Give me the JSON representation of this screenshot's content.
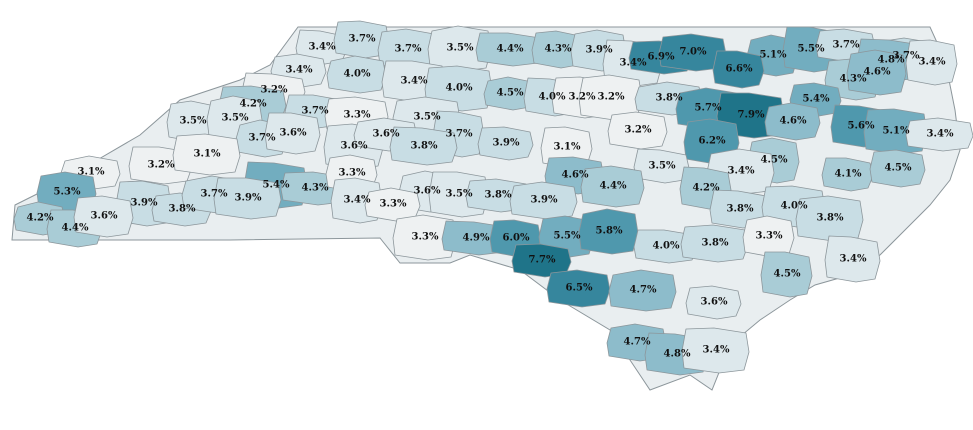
{
  "map": {
    "region": "North Carolina",
    "color_scale": [
      {
        "max": 3.3,
        "color": "#eef1f2"
      },
      {
        "max": 3.6,
        "color": "#dde8ec"
      },
      {
        "max": 4.0,
        "color": "#c8dde4"
      },
      {
        "max": 4.5,
        "color": "#a9ccd6"
      },
      {
        "max": 5.0,
        "color": "#8dbccb"
      },
      {
        "max": 5.5,
        "color": "#72adbf"
      },
      {
        "max": 6.2,
        "color": "#4f98ad"
      },
      {
        "max": 7.0,
        "color": "#36869d"
      },
      {
        "max": 9.9,
        "color": "#1f7489"
      }
    ]
  },
  "counties": [
    {
      "label": "3.4%",
      "value": 3.4
    },
    {
      "label": "3.7%",
      "value": 3.7
    },
    {
      "label": "3.7%",
      "value": 3.7
    },
    {
      "label": "3.5%",
      "value": 3.5
    },
    {
      "label": "4.4%",
      "value": 4.4
    },
    {
      "label": "4.3%",
      "value": 4.3
    },
    {
      "label": "3.9%",
      "value": 3.9
    },
    {
      "label": "3.4%",
      "value": 3.4
    },
    {
      "label": "6.9%",
      "value": 6.9
    },
    {
      "label": "7.0%",
      "value": 7.0
    },
    {
      "label": "5.1%",
      "value": 5.1
    },
    {
      "label": "5.5%",
      "value": 5.5
    },
    {
      "label": "3.7%",
      "value": 3.7
    },
    {
      "label": "3.7%",
      "value": 3.7
    },
    {
      "label": "4.8%",
      "value": 4.8
    },
    {
      "label": "3.4%",
      "value": 3.4
    },
    {
      "label": "3.4%",
      "value": 3.4
    },
    {
      "label": "4.0%",
      "value": 4.0
    },
    {
      "label": "3.4%",
      "value": 3.4
    },
    {
      "label": "4.0%",
      "value": 4.0
    },
    {
      "label": "4.5%",
      "value": 4.5
    },
    {
      "label": "4.0%",
      "value": 4.0
    },
    {
      "label": "3.2%",
      "value": 3.2
    },
    {
      "label": "3.2%",
      "value": 3.2
    },
    {
      "label": "3.8%",
      "value": 3.8
    },
    {
      "label": "6.6%",
      "value": 6.6
    },
    {
      "label": "4.3%",
      "value": 4.3
    },
    {
      "label": "4.6%",
      "value": 4.6
    },
    {
      "label": "3.2%",
      "value": 3.2
    },
    {
      "label": "4.2%",
      "value": 4.2
    },
    {
      "label": "3.5%",
      "value": 3.5
    },
    {
      "label": "3.5%",
      "value": 3.5
    },
    {
      "label": "3.7%",
      "value": 3.7
    },
    {
      "label": "3.3%",
      "value": 3.3
    },
    {
      "label": "3.5%",
      "value": 3.5
    },
    {
      "label": "3.7%",
      "value": 3.7
    },
    {
      "label": "3.9%",
      "value": 3.9
    },
    {
      "label": "3.2%",
      "value": 3.2
    },
    {
      "label": "5.7%",
      "value": 5.7
    },
    {
      "label": "7.9%",
      "value": 7.9
    },
    {
      "label": "5.4%",
      "value": 5.4
    },
    {
      "label": "4.6%",
      "value": 4.6
    },
    {
      "label": "5.6%",
      "value": 5.6
    },
    {
      "label": "5.1%",
      "value": 5.1
    },
    {
      "label": "3.4%",
      "value": 3.4
    },
    {
      "label": "3.7%",
      "value": 3.7
    },
    {
      "label": "3.6%",
      "value": 3.6
    },
    {
      "label": "3.6%",
      "value": 3.6
    },
    {
      "label": "3.6%",
      "value": 3.6
    },
    {
      "label": "3.8%",
      "value": 3.8
    },
    {
      "label": "3.1%",
      "value": 3.1
    },
    {
      "label": "6.2%",
      "value": 6.2
    },
    {
      "label": "3.1%",
      "value": 3.1
    },
    {
      "label": "3.2%",
      "value": 3.2
    },
    {
      "label": "3.1%",
      "value": 3.1
    },
    {
      "label": "4.5%",
      "value": 4.5
    },
    {
      "label": "3.5%",
      "value": 3.5
    },
    {
      "label": "4.6%",
      "value": 4.6
    },
    {
      "label": "4.4%",
      "value": 4.4
    },
    {
      "label": "3.4%",
      "value": 3.4
    },
    {
      "label": "4.1%",
      "value": 4.1
    },
    {
      "label": "4.5%",
      "value": 4.5
    },
    {
      "label": "5.3%",
      "value": 5.3
    },
    {
      "label": "5.4%",
      "value": 5.4
    },
    {
      "label": "4.3%",
      "value": 4.3
    },
    {
      "label": "3.3%",
      "value": 3.3
    },
    {
      "label": "3.6%",
      "value": 3.6
    },
    {
      "label": "3.5%",
      "value": 3.5
    },
    {
      "label": "3.8%",
      "value": 3.8
    },
    {
      "label": "3.9%",
      "value": 3.9
    },
    {
      "label": "4.2%",
      "value": 4.2
    },
    {
      "label": "3.9%",
      "value": 3.9
    },
    {
      "label": "3.8%",
      "value": 3.8
    },
    {
      "label": "3.7%",
      "value": 3.7
    },
    {
      "label": "3.9%",
      "value": 3.9
    },
    {
      "label": "3.4%",
      "value": 3.4
    },
    {
      "label": "3.3%",
      "value": 3.3
    },
    {
      "label": "3.8%",
      "value": 3.8
    },
    {
      "label": "4.0%",
      "value": 4.0
    },
    {
      "label": "3.8%",
      "value": 3.8
    },
    {
      "label": "4.2%",
      "value": 4.2
    },
    {
      "label": "4.4%",
      "value": 4.4
    },
    {
      "label": "3.6%",
      "value": 3.6
    },
    {
      "label": "3.3%",
      "value": 3.3
    },
    {
      "label": "4.9%",
      "value": 4.9
    },
    {
      "label": "6.0%",
      "value": 6.0
    },
    {
      "label": "5.5%",
      "value": 5.5
    },
    {
      "label": "5.8%",
      "value": 5.8
    },
    {
      "label": "4.0%",
      "value": 4.0
    },
    {
      "label": "3.8%",
      "value": 3.8
    },
    {
      "label": "3.3%",
      "value": 3.3
    },
    {
      "label": "3.4%",
      "value": 3.4
    },
    {
      "label": "7.7%",
      "value": 7.7
    },
    {
      "label": "6.5%",
      "value": 6.5
    },
    {
      "label": "4.7%",
      "value": 4.7
    },
    {
      "label": "4.5%",
      "value": 4.5
    },
    {
      "label": "3.6%",
      "value": 3.6
    },
    {
      "label": "4.7%",
      "value": 4.7
    },
    {
      "label": "4.8%",
      "value": 4.8
    },
    {
      "label": "3.4%",
      "value": 3.4
    }
  ]
}
